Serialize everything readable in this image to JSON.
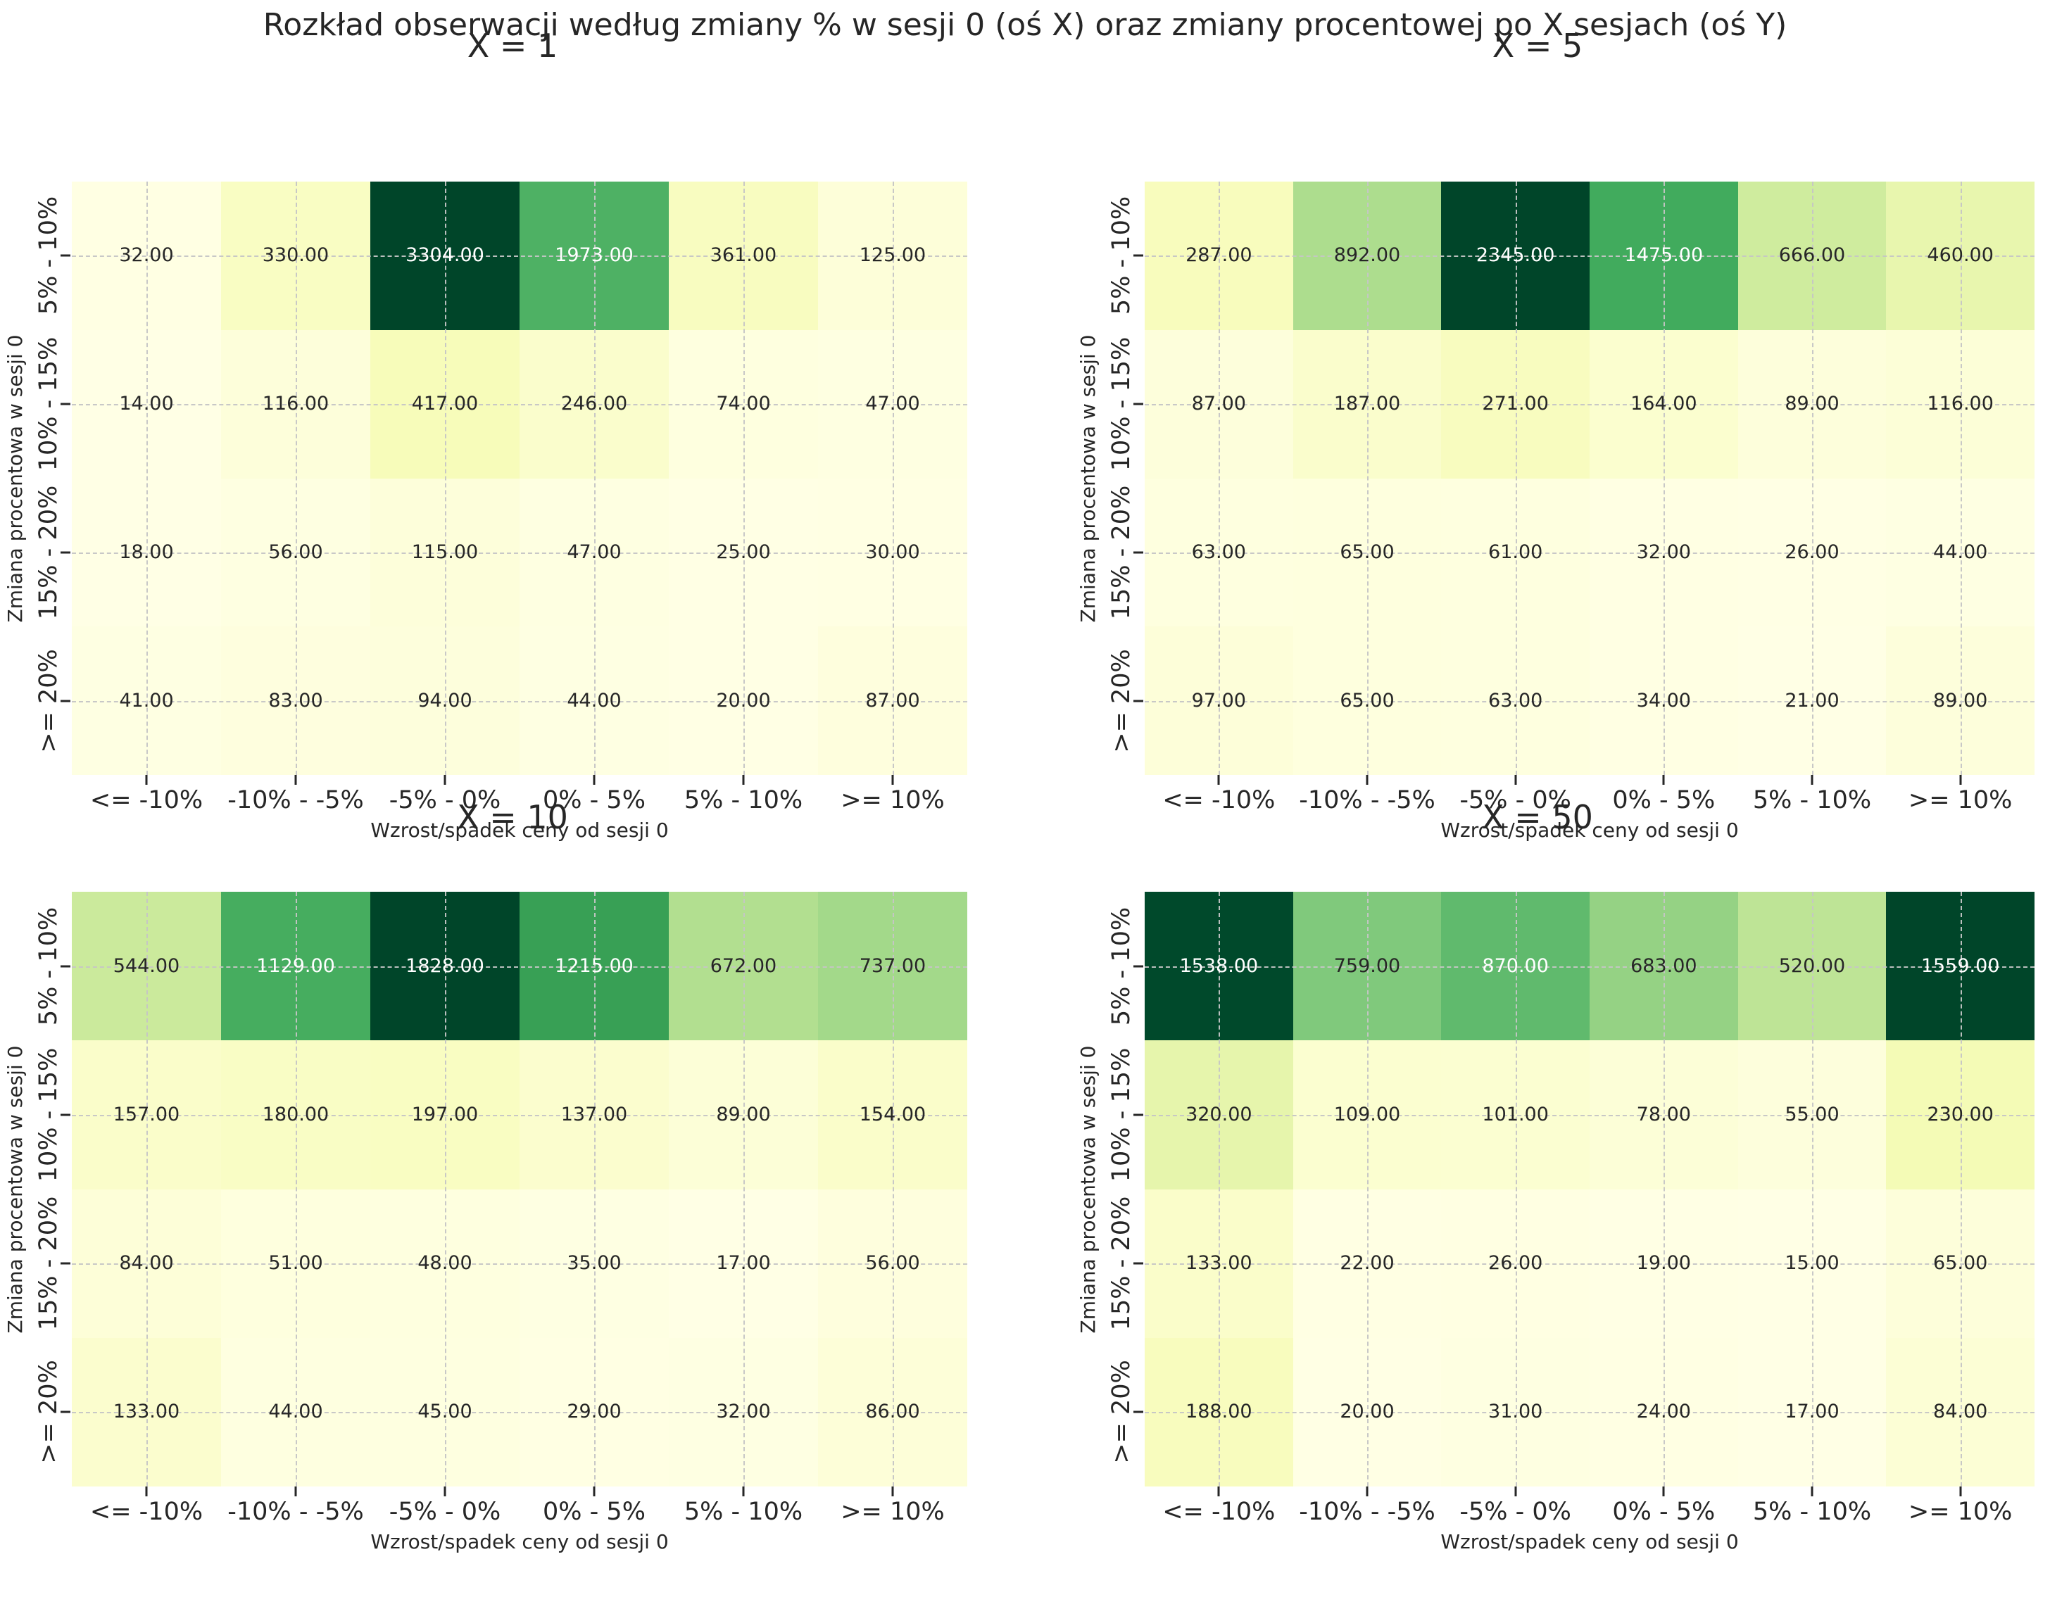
{
  "figure": {
    "suptitle": "Rozkład obserwacji według zmiany % w sesji 0 (oś X) oraz zmiany procentowej po X sesjach (oś Y)"
  },
  "style": {
    "colormap": "YlGn",
    "annotation_format": "%.2f",
    "annotation_dark_color": "#262626",
    "annotation_light_color": "#ffffff",
    "gridline_color": "#c6c6c6",
    "background": "#ffffff"
  },
  "chart_data": {
    "type": "heatmap",
    "grid": "2x2",
    "colormap": "YlGn",
    "normalization": "per-subplot min-max",
    "xlabel": "Wzrost/spadek ceny od sesji 0",
    "ylabel": "Zmiana procentowa w sesji 0",
    "x_categories": [
      "<= -10%",
      "-10% - -5%",
      "-5% - 0%",
      "0% - 5%",
      "5% - 10%",
      ">= 10%"
    ],
    "y_categories": [
      "5% - 10%",
      "10% - 15%",
      "15% - 20%",
      ">= 20%"
    ],
    "subplots": [
      {
        "title": "X = 1",
        "values": [
          [
            32,
            330,
            3304,
            1973,
            361,
            125
          ],
          [
            14,
            116,
            417,
            246,
            74,
            47
          ],
          [
            18,
            56,
            115,
            47,
            25,
            30
          ],
          [
            41,
            83,
            94,
            44,
            20,
            87
          ]
        ]
      },
      {
        "title": "X = 5",
        "values": [
          [
            287,
            892,
            2345,
            1475,
            666,
            460
          ],
          [
            87,
            187,
            271,
            164,
            89,
            116
          ],
          [
            63,
            65,
            61,
            32,
            26,
            44
          ],
          [
            97,
            65,
            63,
            34,
            21,
            89
          ]
        ]
      },
      {
        "title": "X = 10",
        "values": [
          [
            544,
            1129,
            1828,
            1215,
            672,
            737
          ],
          [
            157,
            180,
            197,
            137,
            89,
            154
          ],
          [
            84,
            51,
            48,
            35,
            17,
            56
          ],
          [
            133,
            44,
            45,
            29,
            32,
            86
          ]
        ]
      },
      {
        "title": "X = 50",
        "values": [
          [
            1538,
            759,
            870,
            683,
            520,
            1559
          ],
          [
            320,
            109,
            101,
            78,
            55,
            230
          ],
          [
            133,
            22,
            26,
            19,
            15,
            65
          ],
          [
            188,
            20,
            31,
            24,
            17,
            84
          ]
        ]
      }
    ]
  }
}
